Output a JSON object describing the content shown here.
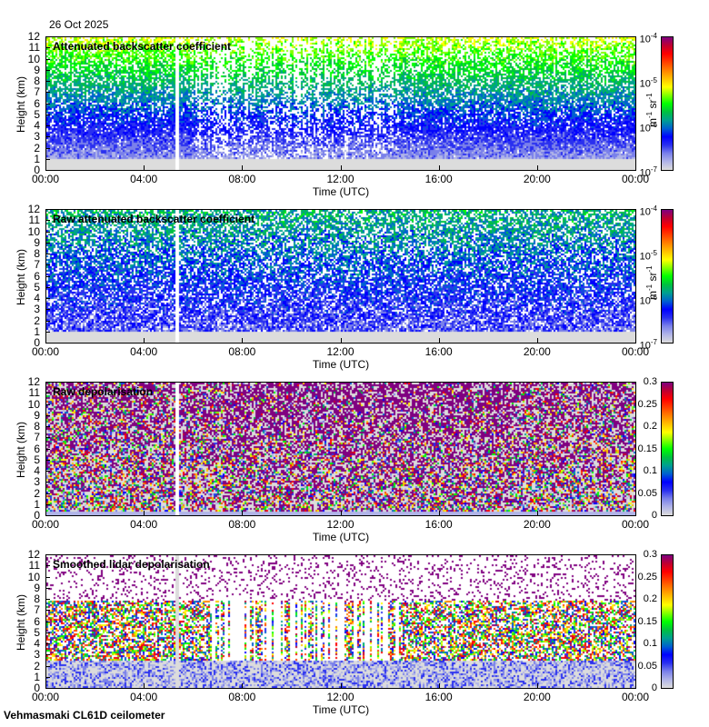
{
  "header": {
    "date": "26 Oct 2025"
  },
  "footer": {
    "instrument": "Vehmasmaki CL61D ceilometer"
  },
  "colors": {
    "colormap": [
      "#dcdcdc",
      "#b0b4e8",
      "#7a80ea",
      "#2a30f0",
      "#0000ff",
      "#0060d0",
      "#00a090",
      "#00c040",
      "#00ff00",
      "#80ff00",
      "#ffff00",
      "#ffc000",
      "#ff8000",
      "#ff4000",
      "#ff0000",
      "#c00030",
      "#800080"
    ]
  },
  "chart_data": [
    {
      "type": "heatmap",
      "title": "Attenuated backscatter coefficient",
      "xlabel": "Time (UTC)",
      "ylabel": "Height (km)",
      "x_ticks": [
        "00:00",
        "04:00",
        "08:00",
        "12:00",
        "16:00",
        "20:00",
        "00:00"
      ],
      "y_ticks": [
        "0",
        "1",
        "2",
        "3",
        "4",
        "5",
        "6",
        "7",
        "8",
        "9",
        "10",
        "11",
        "12"
      ],
      "ylim": [
        0,
        12
      ],
      "colorbar": {
        "scale": "log",
        "range": [
          1e-07,
          0.0001
        ],
        "tick_labels": [
          {
            "base": "10",
            "exp": "-4"
          },
          {
            "base": "10",
            "exp": "-5"
          },
          {
            "base": "10",
            "exp": "-6"
          },
          {
            "base": "10",
            "exp": "-7"
          }
        ],
        "unit": {
          "m": "m",
          "m_exp": "-1",
          "sr": "sr",
          "sr_exp": "-1"
        }
      },
      "data_gap_hours": [
        5.2,
        5.4
      ]
    },
    {
      "type": "heatmap",
      "title": "Raw attenuated backscatter coefficient",
      "xlabel": "Time (UTC)",
      "ylabel": "Height (km)",
      "x_ticks": [
        "00:00",
        "04:00",
        "08:00",
        "12:00",
        "16:00",
        "20:00",
        "00:00"
      ],
      "y_ticks": [
        "0",
        "1",
        "2",
        "3",
        "4",
        "5",
        "6",
        "7",
        "8",
        "9",
        "10",
        "11",
        "12"
      ],
      "ylim": [
        0,
        12
      ],
      "colorbar": {
        "scale": "log",
        "range": [
          1e-07,
          0.0001
        ],
        "tick_labels": [
          {
            "base": "10",
            "exp": "-4"
          },
          {
            "base": "10",
            "exp": "-5"
          },
          {
            "base": "10",
            "exp": "-6"
          },
          {
            "base": "10",
            "exp": "-7"
          }
        ],
        "unit": {
          "m": "m",
          "m_exp": "-1",
          "sr": "sr",
          "sr_exp": "-1"
        }
      },
      "data_gap_hours": [
        5.2,
        5.4
      ]
    },
    {
      "type": "heatmap",
      "title": "Raw depolarisation",
      "xlabel": "Time (UTC)",
      "ylabel": "Height (km)",
      "x_ticks": [
        "00:00",
        "04:00",
        "08:00",
        "12:00",
        "16:00",
        "20:00",
        "00:00"
      ],
      "y_ticks": [
        "0",
        "1",
        "2",
        "3",
        "4",
        "5",
        "6",
        "7",
        "8",
        "9",
        "10",
        "11",
        "12"
      ],
      "ylim": [
        0,
        12
      ],
      "colorbar": {
        "scale": "linear",
        "range": [
          0,
          0.3
        ],
        "tick_labels": [
          "0.3",
          "0.25",
          "0.2",
          "0.15",
          "0.1",
          "0.05",
          "0"
        ]
      },
      "data_gap_hours": [
        5.2,
        5.4
      ]
    },
    {
      "type": "heatmap",
      "title": "Smoothed lidar depolarisation",
      "xlabel": "Time (UTC)",
      "ylabel": "Height (km)",
      "x_ticks": [
        "00:00",
        "04:00",
        "08:00",
        "12:00",
        "16:00",
        "20:00",
        "00:00"
      ],
      "y_ticks": [
        "0",
        "1",
        "2",
        "3",
        "4",
        "5",
        "6",
        "7",
        "8",
        "9",
        "10",
        "11",
        "12"
      ],
      "ylim": [
        0,
        12
      ],
      "colorbar": {
        "scale": "linear",
        "range": [
          0,
          0.3
        ],
        "tick_labels": [
          "0.3",
          "0.25",
          "0.2",
          "0.15",
          "0.1",
          "0.05",
          "0"
        ]
      },
      "data_gap_hours": [
        5.2,
        5.4
      ]
    }
  ]
}
